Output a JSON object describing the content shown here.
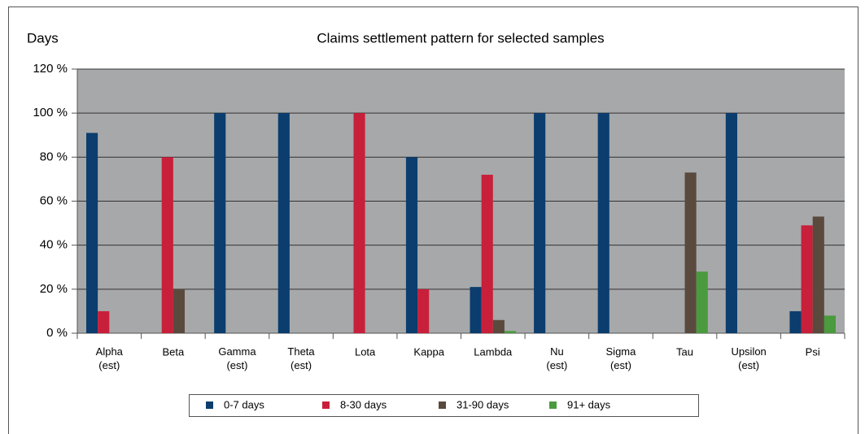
{
  "chart_data": {
    "type": "bar",
    "title": "Claims settlement pattern for selected samples",
    "y_label": "Days",
    "categories": [
      "Alpha\n(est)",
      "Beta",
      "Gamma\n(est)",
      "Theta\n(est)",
      "Lota",
      "Kappa",
      "Lambda",
      "Nu\n(est)",
      "Sigma\n(est)",
      "Tau",
      "Upsilon\n(est)",
      "Psi"
    ],
    "series": [
      {
        "name": "0-7 days",
        "color": "#0b3d6e",
        "values": [
          91,
          0,
          100,
          100,
          0,
          80,
          21,
          100,
          100,
          0,
          100,
          10
        ]
      },
      {
        "name": "8-30 days",
        "color": "#c8203a",
        "values": [
          10,
          80,
          0,
          0,
          100,
          20,
          72,
          0,
          0,
          0,
          0,
          49
        ]
      },
      {
        "name": "31-90 days",
        "color": "#5a4a3e",
        "values": [
          0,
          20,
          0,
          0,
          0,
          0,
          6,
          0,
          0,
          73,
          0,
          53
        ]
      },
      {
        "name": "91+ days",
        "color": "#4a9a3e",
        "values": [
          0,
          0,
          0,
          0,
          0,
          0,
          1,
          0,
          0,
          28,
          0,
          8
        ]
      }
    ],
    "ylim": [
      0,
      120
    ],
    "yticks": [
      {
        "value": 0,
        "label": "0 %"
      },
      {
        "value": 20,
        "label": "20 %"
      },
      {
        "value": 40,
        "label": "40 %"
      },
      {
        "value": 60,
        "label": "60 %"
      },
      {
        "value": 80,
        "label": "80 %"
      },
      {
        "value": 100,
        "label": "100 %"
      },
      {
        "value": 120,
        "label": "120 %"
      }
    ],
    "grid": true,
    "plot_background": "#a7a8aa",
    "legend": "bottom"
  }
}
